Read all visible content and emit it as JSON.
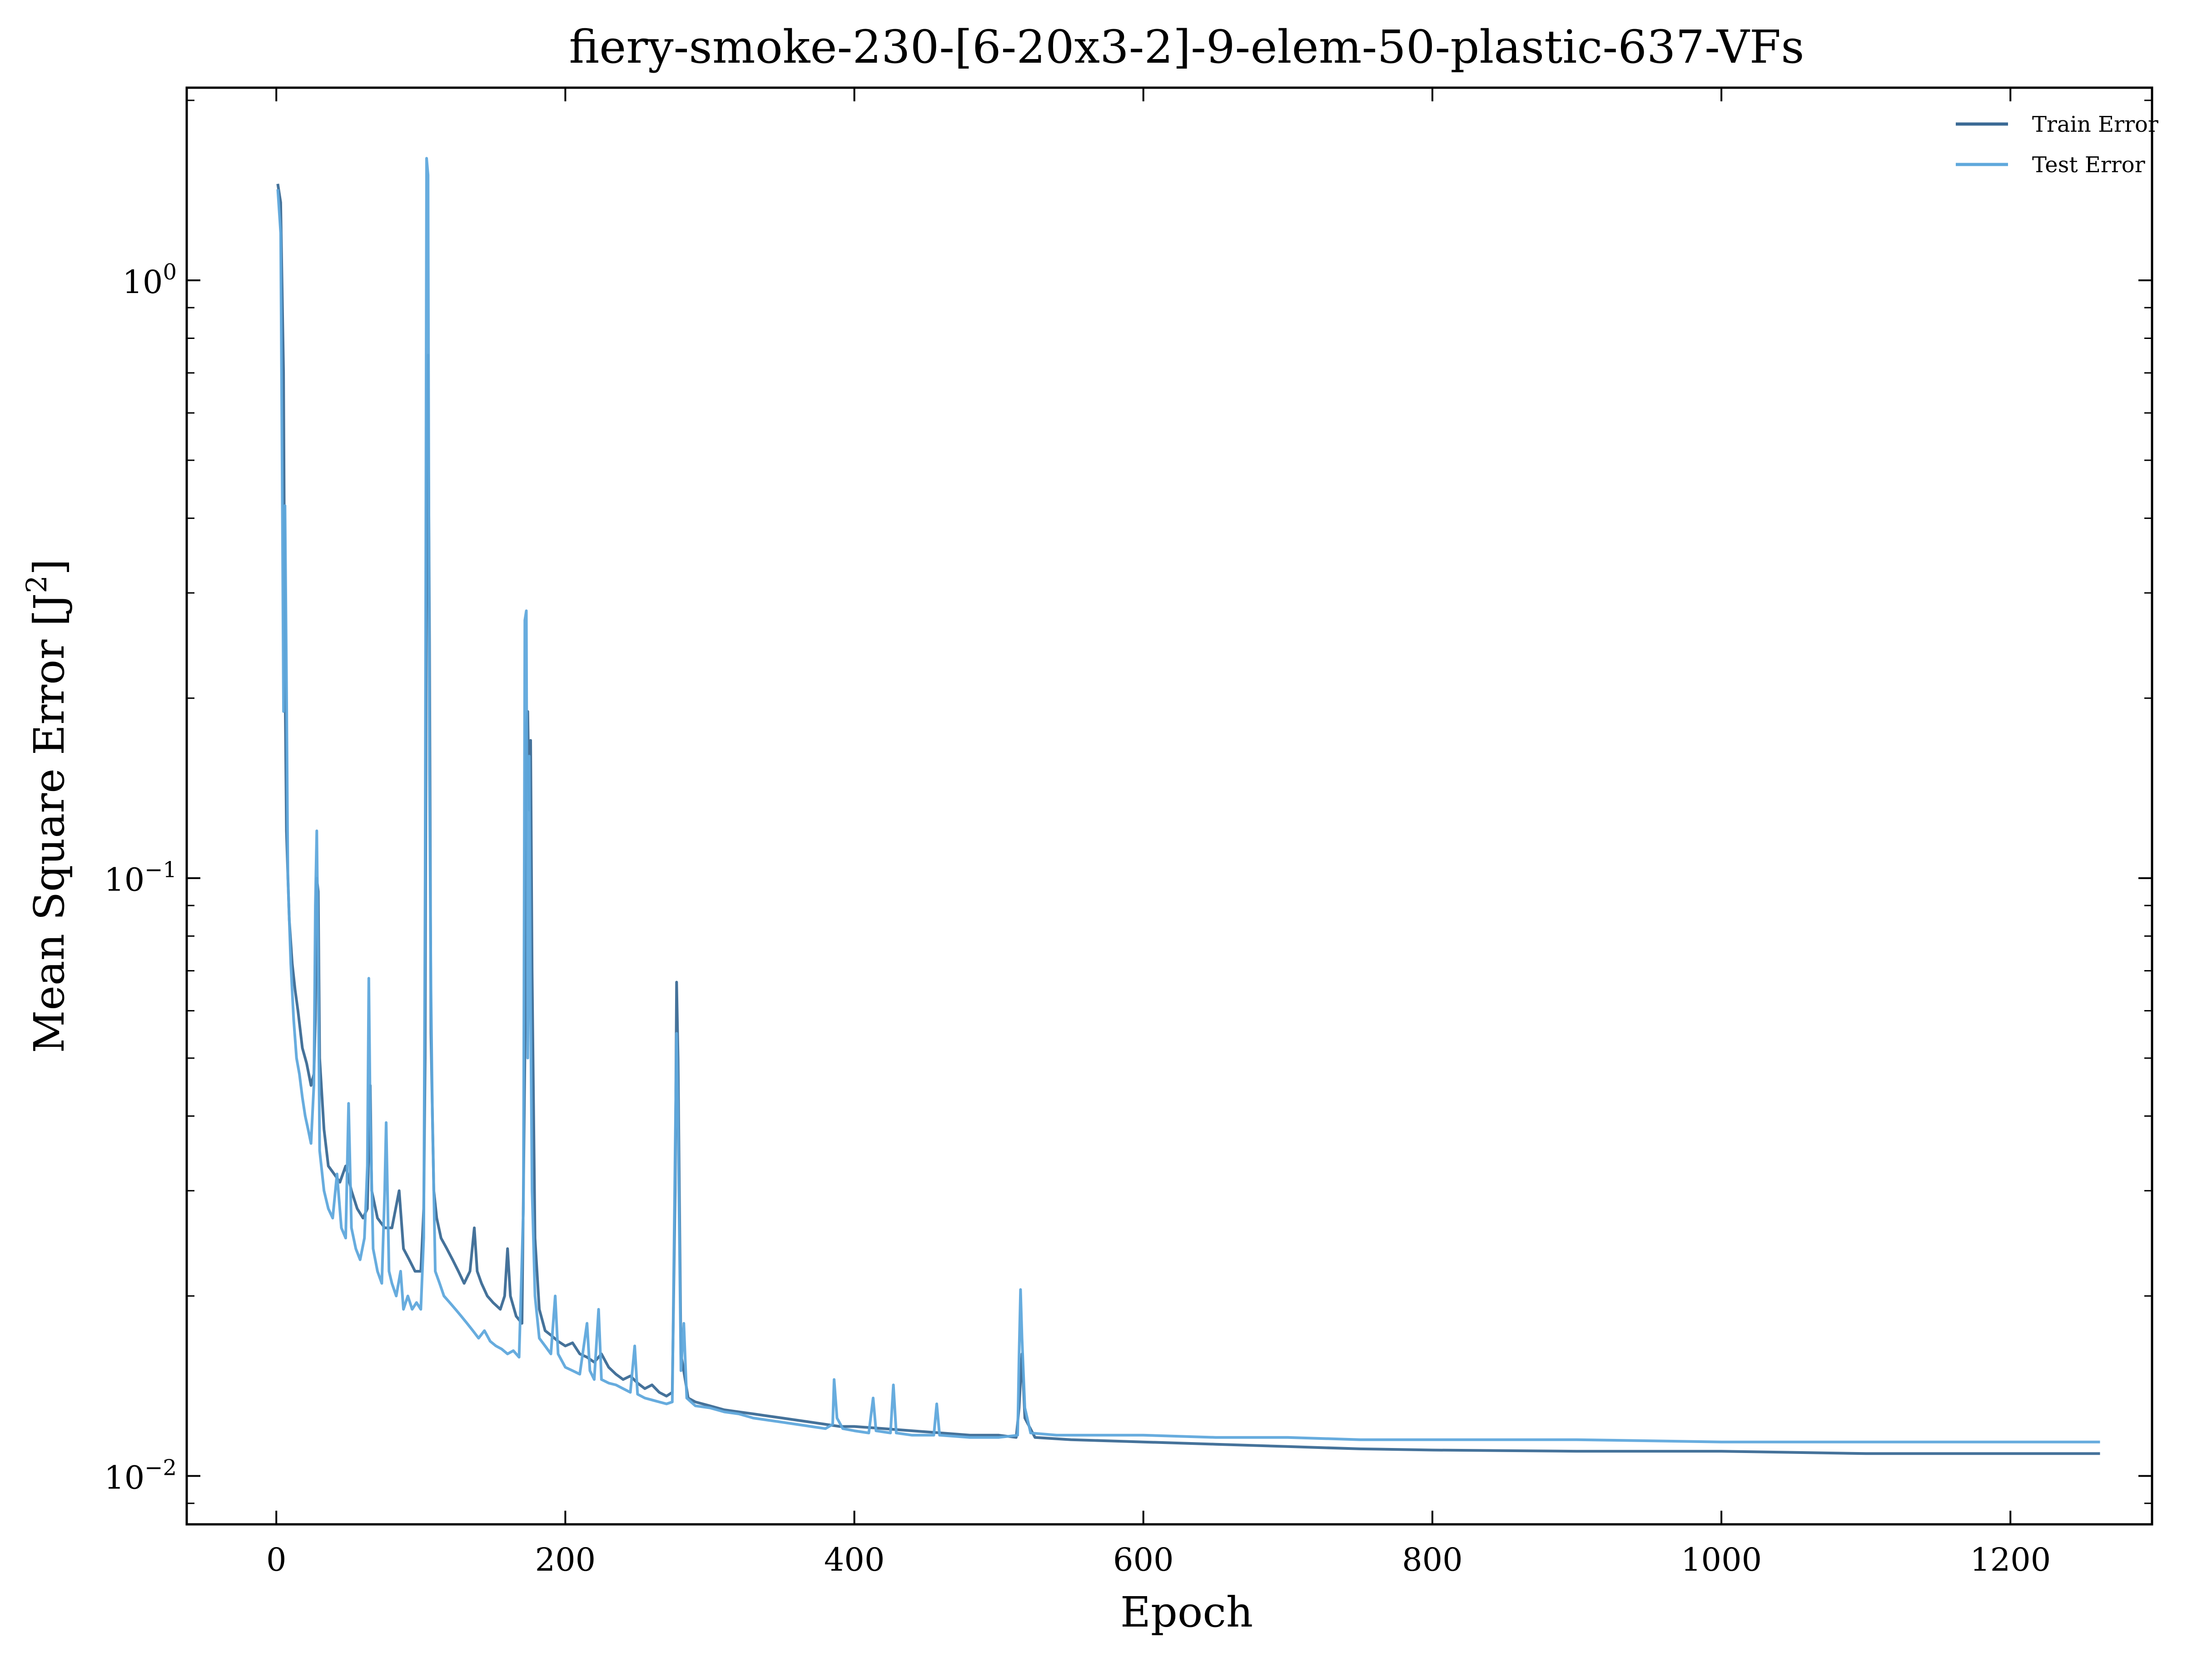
{
  "chart_data": {
    "type": "line",
    "title": "fiery-smoke-230-[6-20x3-2]-9-elem-50-plastic-637-VFs",
    "xlabel": "Epoch",
    "ylabel_text": "Mean Square Error [J",
    "ylabel_sup": "2",
    "ylabel_close": "]",
    "xscale": "linear",
    "yscale": "log",
    "xlim": [
      -62,
      1298
    ],
    "ylim": [
      0.0083,
      2.1
    ],
    "xticks": [
      0,
      200,
      400,
      600,
      800,
      1000,
      1200
    ],
    "xtick_labels": [
      "0",
      "200",
      "400",
      "600",
      "800",
      "1000",
      "1200"
    ],
    "yticks": [
      {
        "value": 0.01,
        "base": "10",
        "exp": "−2"
      },
      {
        "value": 0.1,
        "base": "10",
        "exp": "−1"
      },
      {
        "value": 1,
        "base": "10",
        "exp": "0"
      }
    ],
    "grid": false,
    "legend_position": "top-right",
    "series": [
      {
        "name": "Train Error",
        "color": "#3b6a95",
        "points": [
          [
            1,
            1.45
          ],
          [
            3,
            1.35
          ],
          [
            5,
            0.7
          ],
          [
            6,
            0.22
          ],
          [
            7,
            0.12
          ],
          [
            9,
            0.085
          ],
          [
            11,
            0.072
          ],
          [
            13,
            0.065
          ],
          [
            15,
            0.06
          ],
          [
            18,
            0.052
          ],
          [
            21,
            0.049
          ],
          [
            24,
            0.045
          ],
          [
            26,
            0.047
          ],
          [
            27,
            0.058
          ],
          [
            28,
            0.1
          ],
          [
            29,
            0.095
          ],
          [
            30,
            0.05
          ],
          [
            33,
            0.038
          ],
          [
            36,
            0.033
          ],
          [
            40,
            0.032
          ],
          [
            44,
            0.031
          ],
          [
            48,
            0.033
          ],
          [
            52,
            0.03
          ],
          [
            56,
            0.028
          ],
          [
            60,
            0.027
          ],
          [
            63,
            0.028
          ],
          [
            65,
            0.045
          ],
          [
            66,
            0.03
          ],
          [
            70,
            0.027
          ],
          [
            75,
            0.026
          ],
          [
            80,
            0.026
          ],
          [
            85,
            0.03
          ],
          [
            88,
            0.024
          ],
          [
            92,
            0.023
          ],
          [
            96,
            0.022
          ],
          [
            100,
            0.022
          ],
          [
            102,
            0.028
          ],
          [
            103,
            0.05
          ],
          [
            104,
            0.4
          ],
          [
            105,
            0.75
          ],
          [
            106,
            0.25
          ],
          [
            107,
            0.055
          ],
          [
            109,
            0.03
          ],
          [
            111,
            0.027
          ],
          [
            114,
            0.025
          ],
          [
            118,
            0.024
          ],
          [
            122,
            0.023
          ],
          [
            126,
            0.022
          ],
          [
            130,
            0.021
          ],
          [
            134,
            0.022
          ],
          [
            137,
            0.026
          ],
          [
            139,
            0.022
          ],
          [
            142,
            0.021
          ],
          [
            146,
            0.02
          ],
          [
            150,
            0.0195
          ],
          [
            155,
            0.019
          ],
          [
            158,
            0.02
          ],
          [
            160,
            0.024
          ],
          [
            162,
            0.02
          ],
          [
            166,
            0.0185
          ],
          [
            170,
            0.018
          ],
          [
            172,
            0.05
          ],
          [
            173,
            0.18
          ],
          [
            174,
            0.19
          ],
          [
            175,
            0.13
          ],
          [
            176,
            0.17
          ],
          [
            177,
            0.07
          ],
          [
            179,
            0.025
          ],
          [
            182,
            0.019
          ],
          [
            186,
            0.0175
          ],
          [
            190,
            0.0172
          ],
          [
            195,
            0.0168
          ],
          [
            200,
            0.0165
          ],
          [
            205,
            0.0167
          ],
          [
            210,
            0.016
          ],
          [
            215,
            0.0158
          ],
          [
            220,
            0.0155
          ],
          [
            225,
            0.016
          ],
          [
            230,
            0.0152
          ],
          [
            235,
            0.0148
          ],
          [
            240,
            0.0145
          ],
          [
            245,
            0.0147
          ],
          [
            250,
            0.0143
          ],
          [
            255,
            0.014
          ],
          [
            260,
            0.0142
          ],
          [
            265,
            0.0138
          ],
          [
            270,
            0.0136
          ],
          [
            274,
            0.0138
          ],
          [
            276,
            0.03
          ],
          [
            277,
            0.067
          ],
          [
            278,
            0.05
          ],
          [
            280,
            0.016
          ],
          [
            285,
            0.0135
          ],
          [
            290,
            0.0133
          ],
          [
            300,
            0.0131
          ],
          [
            310,
            0.0129
          ],
          [
            320,
            0.0128
          ],
          [
            330,
            0.0127
          ],
          [
            340,
            0.0126
          ],
          [
            350,
            0.0125
          ],
          [
            360,
            0.0124
          ],
          [
            370,
            0.0123
          ],
          [
            380,
            0.0122
          ],
          [
            390,
            0.0121
          ],
          [
            400,
            0.0121
          ],
          [
            420,
            0.012
          ],
          [
            440,
            0.0119
          ],
          [
            460,
            0.0118
          ],
          [
            480,
            0.0117
          ],
          [
            500,
            0.0117
          ],
          [
            512,
            0.0116
          ],
          [
            514,
            0.013
          ],
          [
            516,
            0.016
          ],
          [
            518,
            0.0125
          ],
          [
            525,
            0.0116
          ],
          [
            550,
            0.0115
          ],
          [
            600,
            0.0114
          ],
          [
            650,
            0.0113
          ],
          [
            700,
            0.0112
          ],
          [
            750,
            0.0111
          ],
          [
            800,
            0.01105
          ],
          [
            900,
            0.011
          ],
          [
            1000,
            0.011
          ],
          [
            1100,
            0.0109
          ],
          [
            1200,
            0.0109
          ],
          [
            1262,
            0.0109
          ]
        ]
      },
      {
        "name": "Test Error",
        "color": "#5fa8dc",
        "points": [
          [
            1,
            1.42
          ],
          [
            3,
            1.2
          ],
          [
            4,
            0.5
          ],
          [
            5,
            0.19
          ],
          [
            6,
            0.42
          ],
          [
            7,
            0.22
          ],
          [
            8,
            0.1
          ],
          [
            10,
            0.072
          ],
          [
            12,
            0.058
          ],
          [
            14,
            0.05
          ],
          [
            16,
            0.047
          ],
          [
            18,
            0.043
          ],
          [
            20,
            0.04
          ],
          [
            22,
            0.038
          ],
          [
            24,
            0.036
          ],
          [
            26,
            0.045
          ],
          [
            27,
            0.09
          ],
          [
            28,
            0.12
          ],
          [
            29,
            0.07
          ],
          [
            30,
            0.035
          ],
          [
            33,
            0.03
          ],
          [
            36,
            0.028
          ],
          [
            39,
            0.027
          ],
          [
            42,
            0.032
          ],
          [
            45,
            0.026
          ],
          [
            48,
            0.025
          ],
          [
            50,
            0.042
          ],
          [
            52,
            0.026
          ],
          [
            55,
            0.024
          ],
          [
            58,
            0.023
          ],
          [
            61,
            0.025
          ],
          [
            63,
            0.033
          ],
          [
            64,
            0.068
          ],
          [
            65,
            0.04
          ],
          [
            67,
            0.024
          ],
          [
            70,
            0.022
          ],
          [
            73,
            0.021
          ],
          [
            75,
            0.03
          ],
          [
            76,
            0.039
          ],
          [
            78,
            0.022
          ],
          [
            80,
            0.021
          ],
          [
            83,
            0.02
          ],
          [
            86,
            0.022
          ],
          [
            88,
            0.019
          ],
          [
            91,
            0.02
          ],
          [
            94,
            0.019
          ],
          [
            97,
            0.0195
          ],
          [
            100,
            0.019
          ],
          [
            102,
            0.025
          ],
          [
            103,
            0.1
          ],
          [
            104,
            1.6
          ],
          [
            105,
            1.5
          ],
          [
            106,
            0.15
          ],
          [
            107,
            0.065
          ],
          [
            108,
            0.04
          ],
          [
            110,
            0.022
          ],
          [
            113,
            0.021
          ],
          [
            116,
            0.02
          ],
          [
            120,
            0.0195
          ],
          [
            124,
            0.019
          ],
          [
            128,
            0.0185
          ],
          [
            132,
            0.018
          ],
          [
            136,
            0.0175
          ],
          [
            140,
            0.017
          ],
          [
            144,
            0.0175
          ],
          [
            148,
            0.0168
          ],
          [
            152,
            0.0165
          ],
          [
            156,
            0.0163
          ],
          [
            160,
            0.016
          ],
          [
            164,
            0.0162
          ],
          [
            168,
            0.0158
          ],
          [
            171,
            0.028
          ],
          [
            172,
            0.27
          ],
          [
            173,
            0.28
          ],
          [
            174,
            0.05
          ],
          [
            175,
            0.16
          ],
          [
            176,
            0.06
          ],
          [
            177,
            0.03
          ],
          [
            179,
            0.02
          ],
          [
            182,
            0.017
          ],
          [
            186,
            0.0165
          ],
          [
            190,
            0.016
          ],
          [
            193,
            0.02
          ],
          [
            195,
            0.016
          ],
          [
            200,
            0.0152
          ],
          [
            205,
            0.015
          ],
          [
            210,
            0.0148
          ],
          [
            215,
            0.018
          ],
          [
            217,
            0.015
          ],
          [
            220,
            0.0145
          ],
          [
            223,
            0.019
          ],
          [
            225,
            0.0145
          ],
          [
            230,
            0.0143
          ],
          [
            235,
            0.0142
          ],
          [
            240,
            0.014
          ],
          [
            245,
            0.0138
          ],
          [
            248,
            0.0165
          ],
          [
            250,
            0.0137
          ],
          [
            255,
            0.0135
          ],
          [
            260,
            0.0134
          ],
          [
            265,
            0.0133
          ],
          [
            270,
            0.0132
          ],
          [
            274,
            0.0133
          ],
          [
            276,
            0.035
          ],
          [
            277,
            0.055
          ],
          [
            278,
            0.04
          ],
          [
            280,
            0.015
          ],
          [
            282,
            0.018
          ],
          [
            284,
            0.0135
          ],
          [
            290,
            0.0131
          ],
          [
            300,
            0.013
          ],
          [
            310,
            0.0128
          ],
          [
            320,
            0.0127
          ],
          [
            330,
            0.0125
          ],
          [
            340,
            0.0124
          ],
          [
            350,
            0.0123
          ],
          [
            360,
            0.0122
          ],
          [
            370,
            0.0121
          ],
          [
            380,
            0.012
          ],
          [
            385,
            0.0122
          ],
          [
            386,
            0.0145
          ],
          [
            388,
            0.0125
          ],
          [
            392,
            0.012
          ],
          [
            400,
            0.0119
          ],
          [
            410,
            0.0118
          ],
          [
            413,
            0.0135
          ],
          [
            415,
            0.0119
          ],
          [
            425,
            0.0118
          ],
          [
            427,
            0.0142
          ],
          [
            429,
            0.0118
          ],
          [
            440,
            0.0117
          ],
          [
            455,
            0.0117
          ],
          [
            457,
            0.0132
          ],
          [
            459,
            0.0117
          ],
          [
            480,
            0.0116
          ],
          [
            500,
            0.0116
          ],
          [
            513,
            0.0117
          ],
          [
            514,
            0.016
          ],
          [
            515,
            0.0205
          ],
          [
            516,
            0.017
          ],
          [
            518,
            0.013
          ],
          [
            522,
            0.0118
          ],
          [
            540,
            0.0117
          ],
          [
            560,
            0.0117
          ],
          [
            600,
            0.0117
          ],
          [
            650,
            0.0116
          ],
          [
            700,
            0.0116
          ],
          [
            750,
            0.0115
          ],
          [
            800,
            0.0115
          ],
          [
            900,
            0.0115
          ],
          [
            1000,
            0.0114
          ],
          [
            1100,
            0.0114
          ],
          [
            1200,
            0.0114
          ],
          [
            1262,
            0.0114
          ]
        ]
      }
    ]
  }
}
